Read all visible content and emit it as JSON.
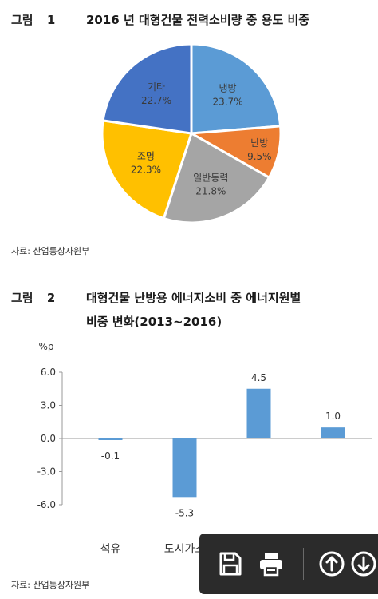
{
  "figure1": {
    "number": "그림 1",
    "title": "2016 년 대형건물 전력소비량 중 용도 비중",
    "source": "자료: 산업통상자원부"
  },
  "figure2": {
    "number": "그림 2",
    "title_line1": "대형건물 난방용 에너지소비 중 에너지원별",
    "title_line2": "비중 변화(2013~2016)",
    "source": "자료: 산업통상자원부"
  },
  "toolbar": {
    "buttons": [
      "save-icon",
      "print-icon",
      "up-icon",
      "down-icon"
    ]
  },
  "chart_data": [
    {
      "type": "pie",
      "title": "2016 년 대형건물 전력소비량 중 용도 비중",
      "slices": [
        {
          "label": "냉방",
          "value": 23.7,
          "text": "23.7%",
          "color": "#5b9bd5"
        },
        {
          "label": "난방",
          "value": 9.5,
          "text": "9.5%",
          "color": "#ed7d31"
        },
        {
          "label": "일반동력",
          "value": 21.8,
          "text": "21.8%",
          "color": "#a5a5a5"
        },
        {
          "label": "조명",
          "value": 22.3,
          "text": "22.3%",
          "color": "#ffc000"
        },
        {
          "label": "기타",
          "value": 22.7,
          "text": "22.7%",
          "color": "#4472c4"
        }
      ]
    },
    {
      "type": "bar",
      "title": "대형건물 난방용 에너지소비 중 에너지원별 비중 변화(2013~2016)",
      "ylabel": "%p",
      "categories": [
        "석유",
        "도시가스",
        "",
        ""
      ],
      "values": [
        -0.1,
        -5.3,
        4.5,
        1.0
      ],
      "value_labels": [
        "-0.1",
        "-5.3",
        "4.5",
        "1.0"
      ],
      "yticks": [
        "6.0",
        "3.0",
        "0.0",
        "-3.0",
        "-6.0"
      ],
      "ylim": [
        -6,
        6
      ],
      "color": "#5b9bd5"
    }
  ]
}
